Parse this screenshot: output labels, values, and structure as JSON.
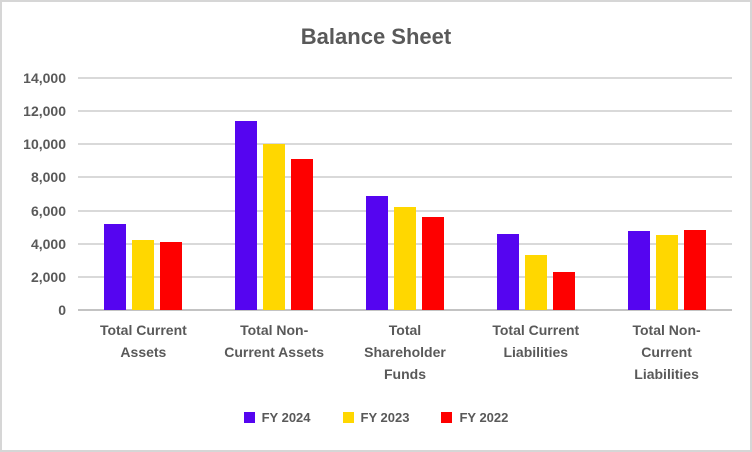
{
  "chart_data": {
    "type": "bar",
    "title": "Balance Sheet",
    "categories": [
      "Total Current Assets",
      "Total Non-Current Assets",
      "Total Shareholder Funds",
      "Total Current Liabilities",
      "Total Non-Current Liabilities"
    ],
    "series": [
      {
        "name": "FY 2024",
        "color": "#5505f0",
        "values": [
          5200,
          11400,
          6900,
          4600,
          4750
        ]
      },
      {
        "name": "FY 2023",
        "color": "#ffd700",
        "values": [
          4250,
          10000,
          6200,
          3300,
          4500
        ]
      },
      {
        "name": "FY 2022",
        "color": "#fe0000",
        "values": [
          4100,
          9100,
          5600,
          2300,
          4850
        ]
      }
    ],
    "xlabel": "",
    "ylabel": "",
    "ylim": [
      0,
      14000
    ],
    "ytick_step": 2000,
    "ytick_labels": [
      "0",
      "2,000",
      "4,000",
      "6,000",
      "8,000",
      "10,000",
      "12,000",
      "14,000"
    ],
    "grid": true,
    "legend_position": "bottom"
  },
  "colors": {
    "text": "#595959",
    "gridline": "#d9d9d9",
    "frame_border": "#d6d6d6",
    "background": "#ffffff"
  }
}
